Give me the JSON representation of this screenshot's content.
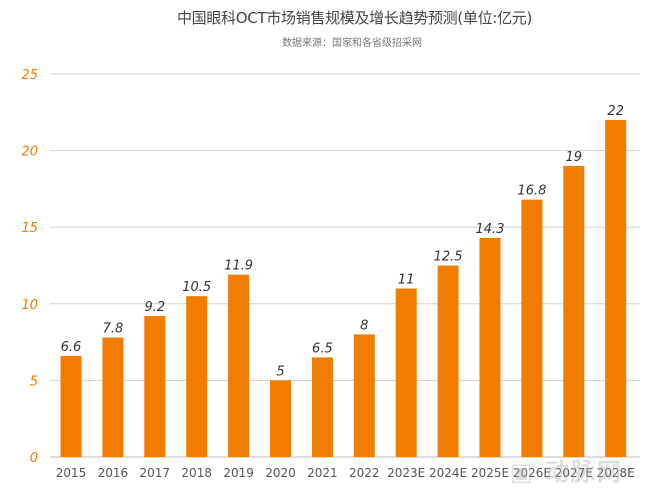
{
  "chart_data": {
    "type": "bar",
    "title": "中国眼科OCT市场销售规模及增长趋势预测(单位:亿元)",
    "subtitle": "数据来源：国家和各省级招采网",
    "categories": [
      "2015",
      "2016",
      "2017",
      "2018",
      "2019",
      "2020",
      "2021",
      "2022",
      "2023E",
      "2024E",
      "2025E",
      "2026E",
      "2027E",
      "2028E"
    ],
    "values": [
      6.6,
      7.8,
      9.2,
      10.5,
      11.9,
      5,
      6.5,
      8,
      11,
      12.5,
      14.3,
      16.8,
      19,
      22
    ],
    "ylim": [
      0,
      25
    ],
    "yticks": [
      0,
      5,
      10,
      15,
      20,
      25
    ],
    "grid": true,
    "colors": {
      "bar": "#f07c00",
      "ytick": "#f07c00",
      "grid": "#d0d0d0"
    }
  },
  "watermark": "动脉网"
}
